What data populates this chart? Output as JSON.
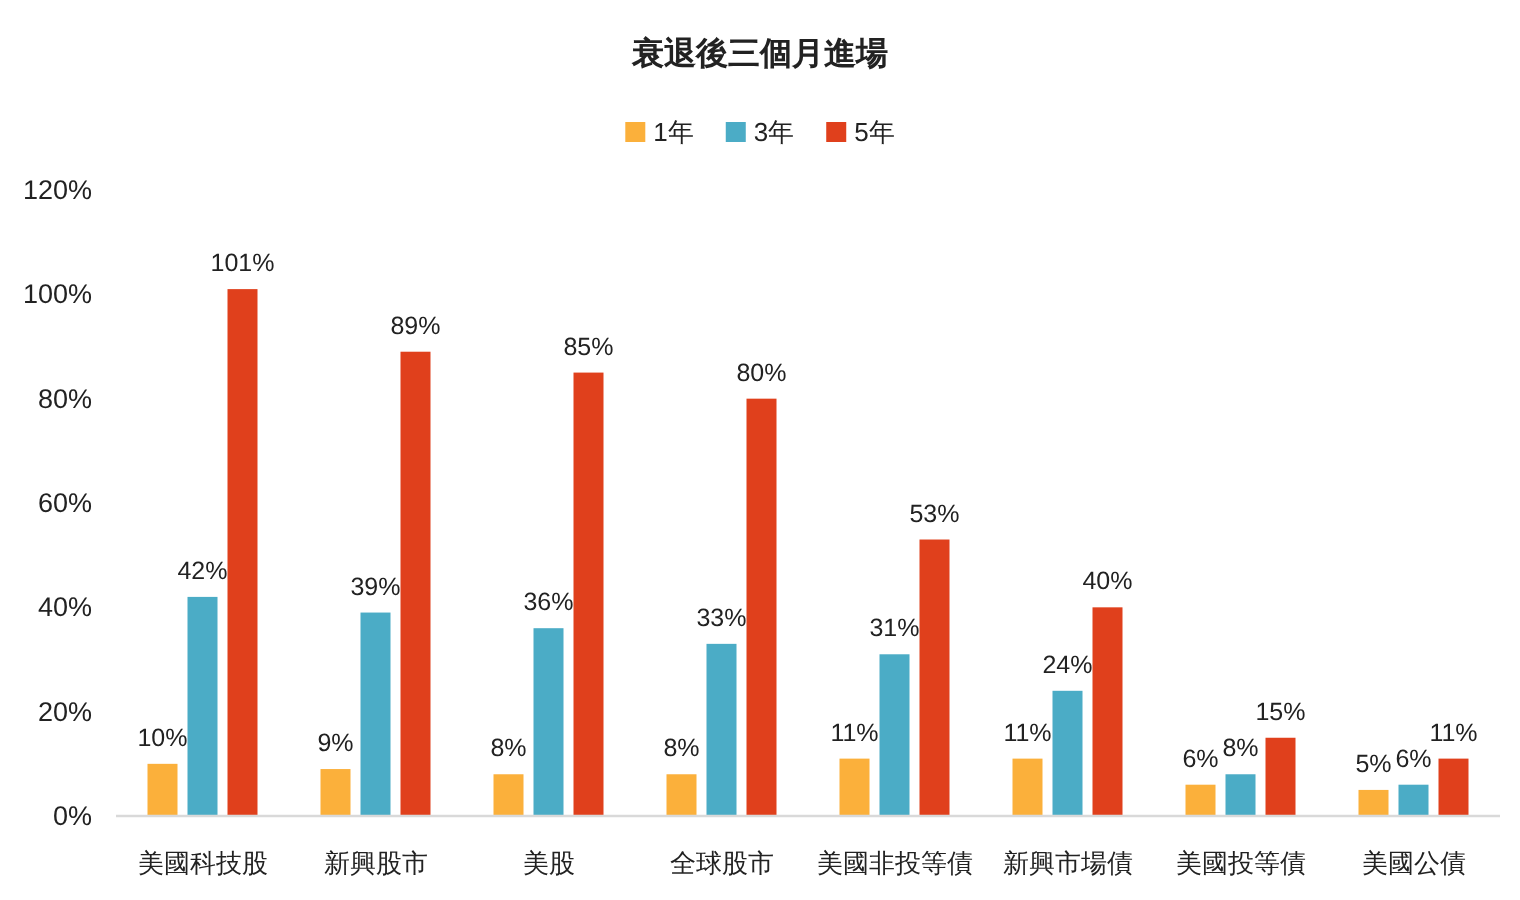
{
  "chart_data": {
    "type": "bar",
    "title": "衰退後三個月進場",
    "categories": [
      "美國科技股",
      "新興股市",
      "美股",
      "全球股市",
      "美國非投等債",
      "新興市場債",
      "美國投等債",
      "美國公債"
    ],
    "series": [
      {
        "name": "1年",
        "color": "#fbb03b",
        "values": [
          10,
          9,
          8,
          8,
          11,
          11,
          6,
          5
        ],
        "value_labels": [
          "10%",
          "9%",
          "8%",
          "8%",
          "11%",
          "11%",
          "6%",
          "5%"
        ]
      },
      {
        "name": "3年",
        "color": "#4bacc6",
        "values": [
          42,
          39,
          36,
          33,
          31,
          24,
          8,
          6
        ],
        "value_labels": [
          "42%",
          "39%",
          "36%",
          "33%",
          "31%",
          "24%",
          "8%",
          "6%"
        ]
      },
      {
        "name": "5年",
        "color": "#e0401c",
        "values": [
          101,
          89,
          85,
          80,
          53,
          40,
          15,
          11
        ],
        "value_labels": [
          "101%",
          "89%",
          "85%",
          "80%",
          "53%",
          "40%",
          "15%",
          "11%"
        ]
      }
    ],
    "ylim": [
      0,
      120
    ],
    "yticks": [
      {
        "value": 0,
        "label": "0%"
      },
      {
        "value": 20,
        "label": "20%"
      },
      {
        "value": 40,
        "label": "40%"
      },
      {
        "value": 60,
        "label": "60%"
      },
      {
        "value": 80,
        "label": "80%"
      },
      {
        "value": 100,
        "label": "100%"
      },
      {
        "value": 120,
        "label": "120%"
      }
    ],
    "legend": "top"
  }
}
